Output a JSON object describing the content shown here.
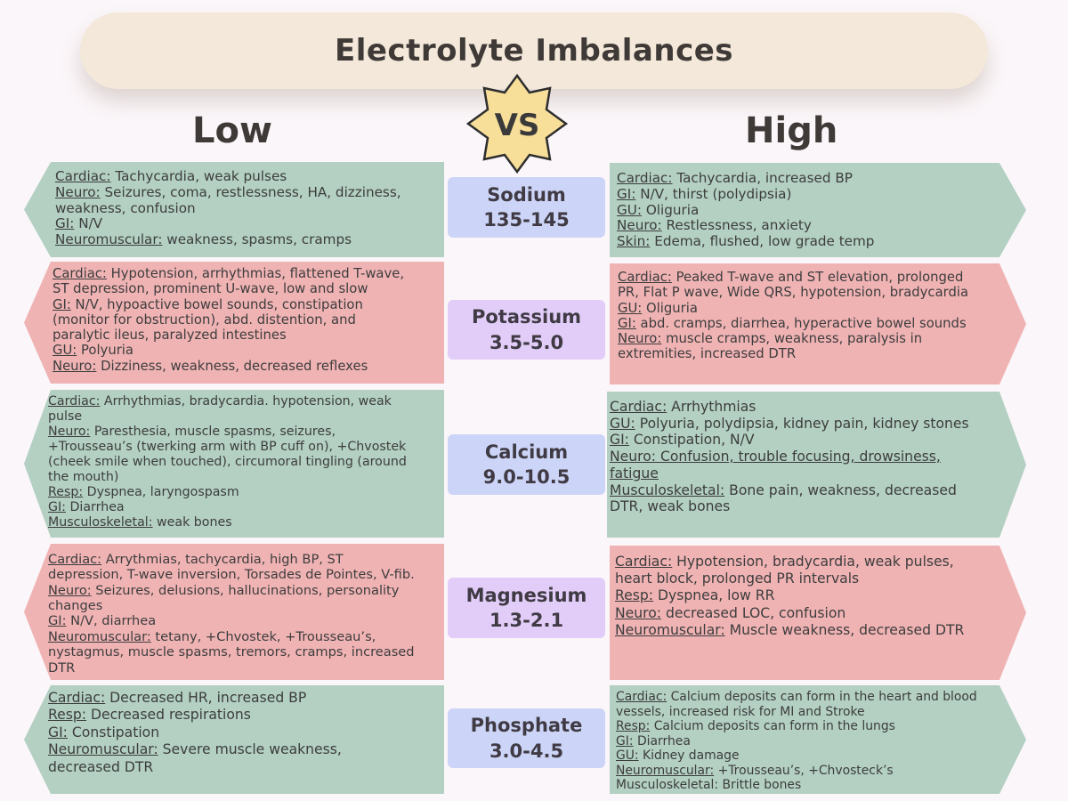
{
  "title": "Electrolyte Imbalances",
  "low_heading": "Low",
  "high_heading": "High",
  "vs_label": "VS",
  "colors": {
    "green_box": "#b3d0c3",
    "pink_box": "#f0b3b4",
    "blue_label": "#ccd5f7",
    "purple_label": "#e2cdf8",
    "banner": "#f3e8d9",
    "vs_star": "#f7df9a"
  },
  "rows": [
    {
      "electrolyte": "Sodium",
      "range": "135-145",
      "low": [
        {
          "label": "Cardiac:",
          "text": " Tachycardia, weak pulses"
        },
        {
          "label": "Neuro:",
          "text": " Seizures, coma, restlessness, HA, dizziness,"
        },
        {
          "label": "",
          "text": "weakness, confusion"
        },
        {
          "label": "GI:",
          "text": " N/V"
        },
        {
          "label": "Neuromuscular:",
          "text": " weakness, spasms, cramps"
        }
      ],
      "high": [
        {
          "label": "Cardiac:",
          "text": " Tachycardia, increased BP"
        },
        {
          "label": "GI:",
          "text": " N/V, thirst (polydipsia)"
        },
        {
          "label": "GU:",
          "text": " Oliguria"
        },
        {
          "label": "Neuro:",
          "text": " Restlessness, anxiety"
        },
        {
          "label": "Skin:",
          "text": " Edema, flushed, low grade temp"
        }
      ]
    },
    {
      "electrolyte": "Potassium",
      "range": "3.5-5.0",
      "low": [
        {
          "label": "Cardiac:",
          "text": " Hypotension, arrhythmias, flattened T-wave,"
        },
        {
          "label": "",
          "text": "ST depression, prominent U-wave, low and slow"
        },
        {
          "label": "GI:",
          "text": " N/V, hypoactive bowel sounds, constipation"
        },
        {
          "label": "",
          "text": "(monitor for obstruction), abd. distention, and"
        },
        {
          "label": "",
          "text": "paralytic ileus, paralyzed intestines"
        },
        {
          "label": "GU:",
          "text": " Polyuria"
        },
        {
          "label": "Neuro:",
          "text": " Dizziness, weakness, decreased reflexes"
        }
      ],
      "high": [
        {
          "label": "Cardiac:",
          "text": " Peaked T-wave and ST elevation, prolonged"
        },
        {
          "label": "",
          "text": "PR, Flat P wave, Wide QRS, hypotension, bradycardia"
        },
        {
          "label": "GU:",
          "text": " Oliguria"
        },
        {
          "label": "GI:",
          "text": " abd. cramps, diarrhea, hyperactive bowel sounds"
        },
        {
          "label": "Neuro:",
          "text": " muscle cramps, weakness, paralysis in"
        },
        {
          "label": "",
          "text": "extremities, increased DTR"
        }
      ]
    },
    {
      "electrolyte": "Calcium",
      "range": "9.0-10.5",
      "low": [
        {
          "label": "Cardiac:",
          "text": " Arrhythmias, bradycardia. hypotension, weak"
        },
        {
          "label": "",
          "text": "pulse"
        },
        {
          "label": "Neuro:",
          "text": " Paresthesia, muscle spasms, seizures,"
        },
        {
          "label": "",
          "text": "+Trousseau’s (twerking arm with BP cuff on), +Chvostek"
        },
        {
          "label": "",
          "text": "(cheek smile when touched), circumoral tingling (around"
        },
        {
          "label": "",
          "text": "the mouth)"
        },
        {
          "label": "Resp:",
          "text": " Dyspnea, laryngospasm"
        },
        {
          "label": "GI:",
          "text": " Diarrhea"
        },
        {
          "label": "Musculoskeletal:",
          "text": " weak bones"
        }
      ],
      "high": [
        {
          "label": "Cardiac:",
          "text": " Arrhythmias"
        },
        {
          "label": "GU:",
          "text": " Polyuria, polydipsia, kidney pain, kidney stones"
        },
        {
          "label": "GI:",
          "text": " Constipation, N/V"
        },
        {
          "label": "Neuro: Confusion, trouble focusing, drowsiness,",
          "text": ""
        },
        {
          "label": "fatigue",
          "text": ""
        },
        {
          "label": "Musculoskeletal:",
          "text": " Bone pain, weakness, decreased"
        },
        {
          "label": "",
          "text": "DTR, weak bones"
        }
      ]
    },
    {
      "electrolyte": "Magnesium",
      "range": "1.3-2.1",
      "low": [
        {
          "label": "Cardiac:",
          "text": " Arrythmias, tachycardia, high BP, ST"
        },
        {
          "label": "",
          "text": "depression, T-wave inversion, Torsades de Pointes, V-fib."
        },
        {
          "label": "Neuro:",
          "text": " Seizures, delusions, hallucinations, personality"
        },
        {
          "label": "",
          "text": "changes"
        },
        {
          "label": "GI:",
          "text": " N/V, diarrhea"
        },
        {
          "label": "Neuromuscular:",
          "text": " tetany, +Chvostek, +Trousseau’s,"
        },
        {
          "label": "",
          "text": "nystagmus, muscle spasms, tremors, cramps, increased"
        },
        {
          "label": "",
          "text": "DTR"
        }
      ],
      "high": [
        {
          "label": "Cardiac:",
          "text": " Hypotension, bradycardia, weak pulses,"
        },
        {
          "label": "",
          "text": "heart block, prolonged PR intervals"
        },
        {
          "label": "Resp:",
          "text": " Dyspnea, low RR"
        },
        {
          "label": "Neuro:",
          "text": " decreased LOC, confusion"
        },
        {
          "label": "Neuromuscular:",
          "text": " Muscle weakness, decreased DTR"
        }
      ]
    },
    {
      "electrolyte": "Phosphate",
      "range": "3.0-4.5",
      "low": [
        {
          "label": "Cardiac:",
          "text": " Decreased HR, increased BP"
        },
        {
          "label": "Resp:",
          "text": " Decreased respirations"
        },
        {
          "label": "GI:",
          "text": " Constipation"
        },
        {
          "label": "Neuromuscular:",
          "text": " Severe muscle weakness,"
        },
        {
          "label": "",
          "text": "decreased DTR"
        }
      ],
      "high": [
        {
          "label": "Cardiac:",
          "text": " Calcium deposits can form in the heart and blood"
        },
        {
          "label": "",
          "text": "vessels, increased risk for MI and Stroke"
        },
        {
          "label": "Resp:",
          "text": " Calcium deposits can form in the lungs"
        },
        {
          "label": "GI:",
          "text": " Diarrhea"
        },
        {
          "label": "GU:",
          "text": " Kidney damage"
        },
        {
          "label": "Neuromuscular:",
          "text": " +Trousseau’s, +Chvosteck’s"
        },
        {
          "label": "",
          "text": "Musculoskeletal: Brittle bones"
        }
      ]
    }
  ]
}
